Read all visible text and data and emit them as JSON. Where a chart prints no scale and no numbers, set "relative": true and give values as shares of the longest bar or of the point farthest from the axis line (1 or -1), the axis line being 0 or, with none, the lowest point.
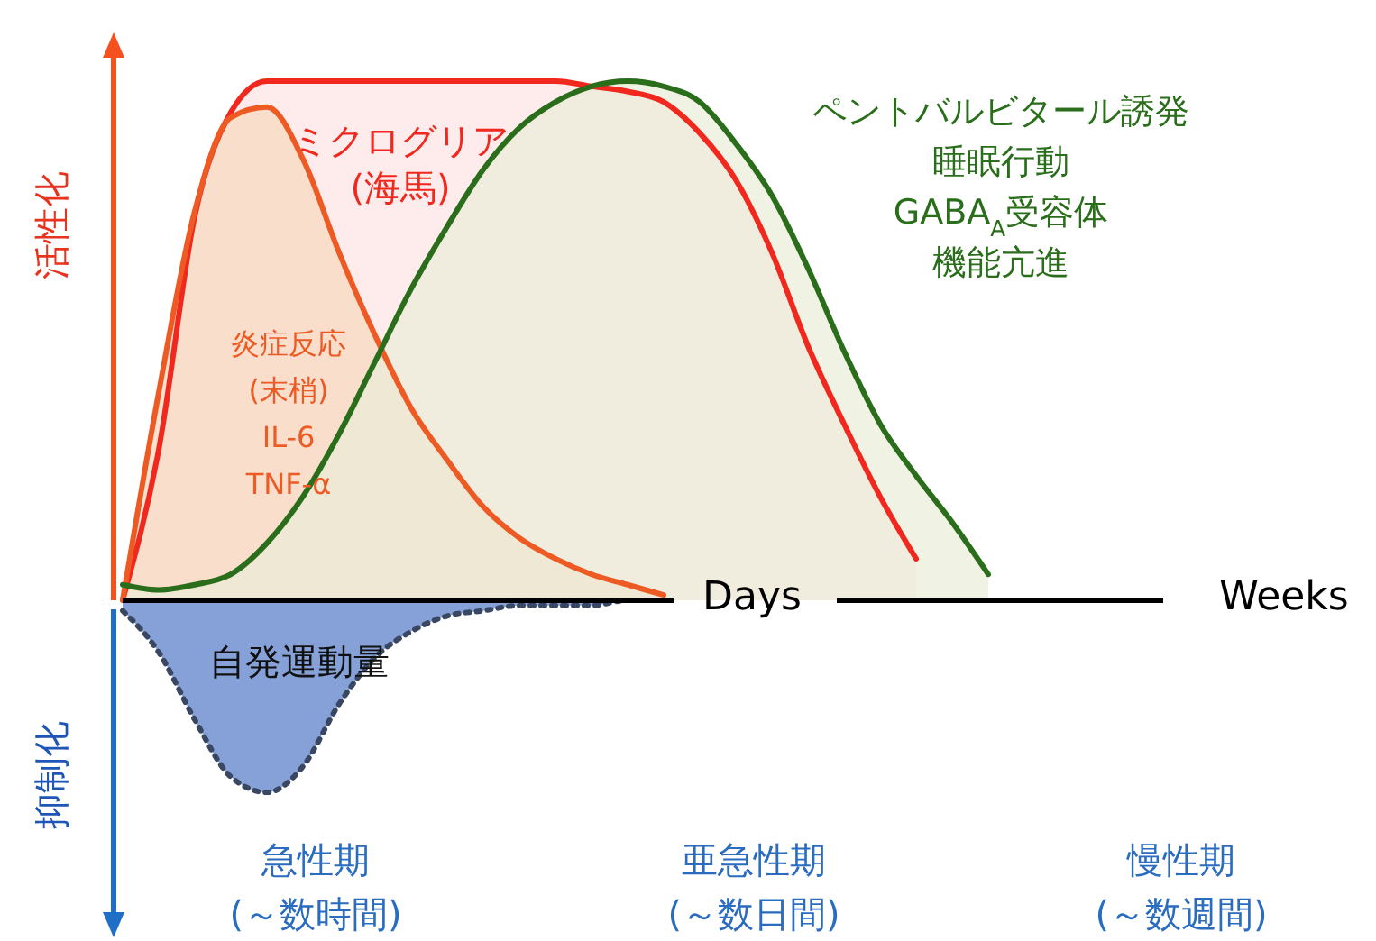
{
  "chart_data": {
    "type": "area",
    "relative": true,
    "categories": [
      null,
      null,
      null,
      null,
      null,
      null,
      null,
      null,
      null,
      null,
      null,
      null,
      null,
      null,
      null,
      null,
      null,
      null,
      null,
      null,
      null,
      null,
      null,
      null,
      null,
      null,
      null,
      null,
      null,
      null,
      null,
      null,
      null,
      null,
      null
    ],
    "series": [
      {
        "name": "ミクログリア(海馬)",
        "color": "#f0281e",
        "values": [
          0,
          0.29,
          0.74,
          0.94,
          1.0,
          1.0,
          1.0,
          1.0,
          1.0,
          1.0,
          1.0,
          1.0,
          1.0,
          0.99,
          0.98,
          0.96,
          0.9,
          0.81,
          0.67,
          0.49,
          0.34,
          0.2,
          0.08,
          null,
          null,
          null,
          null,
          null,
          null,
          null,
          null,
          null,
          null,
          null,
          null
        ]
      },
      {
        "name": "炎症反応(末梢) IL-6 TNF-α",
        "color": "#ee5a24",
        "values": [
          0,
          0.4,
          0.75,
          0.93,
          0.95,
          0.85,
          0.67,
          0.51,
          0.37,
          0.27,
          0.18,
          0.12,
          0.08,
          0.05,
          0.03,
          0.01,
          null,
          null,
          null,
          null,
          null,
          null,
          null,
          null,
          null,
          null,
          null,
          null,
          null,
          null,
          null,
          null,
          null,
          null,
          null
        ]
      },
      {
        "name": "ペントバルビタール誘発睡眠行動GABA$_{A}$受容体機能亢進",
        "color": "#2a6e1c",
        "values": [
          0.03,
          0.02,
          0.03,
          0.05,
          0.11,
          0.2,
          0.32,
          0.46,
          0.6,
          0.72,
          0.83,
          0.91,
          0.96,
          0.99,
          1.0,
          0.99,
          0.96,
          0.88,
          0.78,
          0.64,
          0.48,
          0.34,
          0.24,
          0.15,
          0.05,
          null,
          null,
          null,
          null,
          null,
          null,
          null,
          null,
          null,
          null
        ]
      },
      {
        "name": "自発運動量",
        "color": "#7f9bd6",
        "line_style": "dotted",
        "values": [
          -0.02,
          -0.1,
          -0.23,
          -0.34,
          -0.37,
          -0.32,
          -0.2,
          -0.11,
          -0.06,
          -0.03,
          -0.02,
          -0.01,
          -0.01,
          -0.01,
          0,
          0,
          null,
          null,
          null,
          null,
          null,
          null,
          null,
          null,
          null,
          null,
          null,
          null,
          null,
          null,
          null,
          null,
          null,
          null,
          null
        ]
      }
    ],
    "annotations": [
      "活性化",
      "抑制化",
      "Days",
      "Weeks",
      "急性期(～数時間)",
      "亜急性期(～数日間)",
      "慢性期(～数週間)"
    ]
  }
}
